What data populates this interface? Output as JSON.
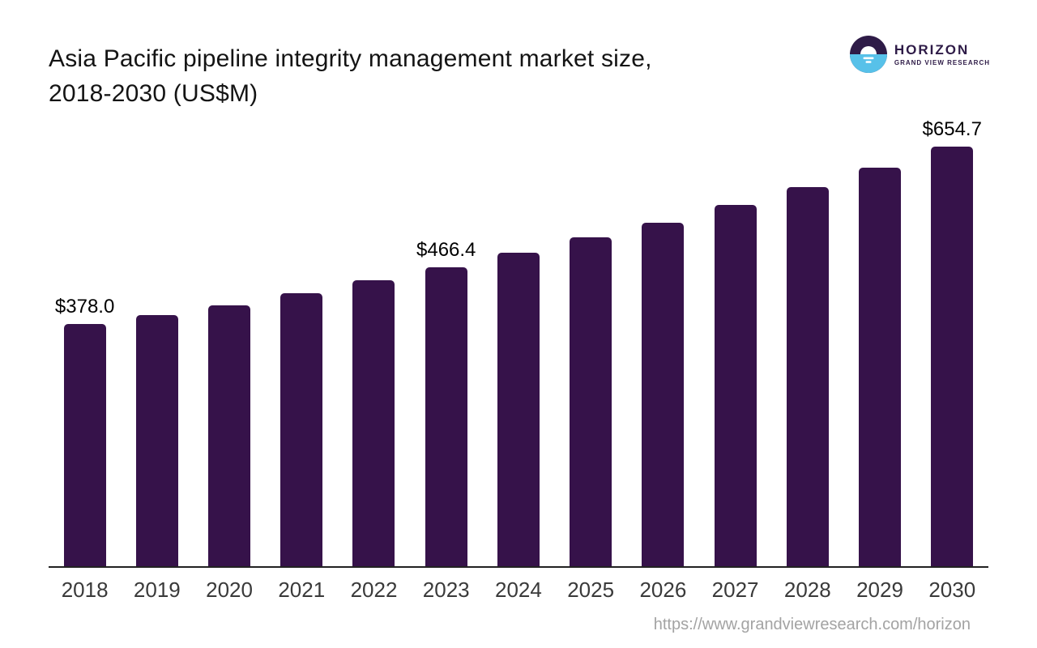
{
  "header": {
    "title_lines": [
      "Asia Pacific pipeline integrity management market size,",
      "2018-2030 (US$M)"
    ],
    "logo": {
      "brand": "HORIZON",
      "subbrand": "GRAND VIEW RESEARCH",
      "icon": "horizon-sunrise-circle-icon",
      "colors": {
        "dark_purple": "#2e1b47",
        "light_blue": "#57c1e9",
        "white": "#ffffff"
      }
    }
  },
  "chart_data": {
    "type": "bar",
    "title": "Asia Pacific pipeline integrity management market size, 2018-2030 (US$M)",
    "categories": [
      "2018",
      "2019",
      "2020",
      "2021",
      "2022",
      "2023",
      "2024",
      "2025",
      "2026",
      "2027",
      "2028",
      "2029",
      "2030"
    ],
    "values": [
      378.0,
      392.0,
      407.5,
      425.7,
      445.9,
      466.4,
      488.8,
      512.8,
      536.4,
      563.2,
      591.9,
      621.3,
      654.7
    ],
    "data_labels": [
      "$378.0",
      null,
      null,
      null,
      null,
      "$466.4",
      null,
      null,
      null,
      null,
      null,
      null,
      "$654.7"
    ],
    "xlabel": "",
    "ylabel": "",
    "ylim": [
      0,
      700
    ],
    "grid": false,
    "legend": false,
    "y_axis_hidden": true,
    "bar_color": "#36124a",
    "axis_line_color": "#222222",
    "tick_label_color": "#3a3a3a",
    "value_label_color": "#000000"
  },
  "footer": {
    "url": "https://www.grandviewresearch.com/horizon"
  }
}
